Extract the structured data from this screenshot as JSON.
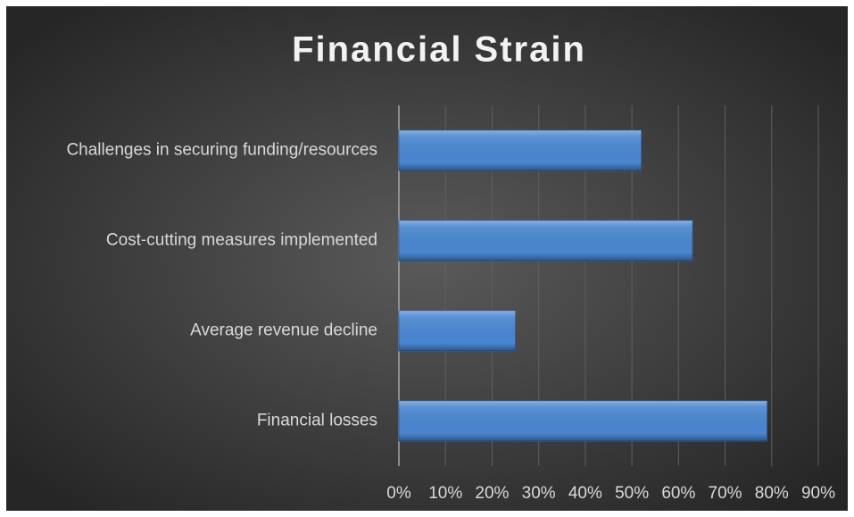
{
  "chart_data": {
    "type": "bar",
    "orientation": "horizontal",
    "title": "Financial Strain",
    "categories": [
      "Challenges in securing funding/resources",
      "Cost-cutting measures implemented",
      "Average revenue decline",
      "Financial losses"
    ],
    "values": [
      52,
      63,
      25,
      79
    ],
    "color": "#4a86d0",
    "xlim": [
      0,
      90
    ],
    "xticks": [
      {
        "value": 0,
        "label": "0%"
      },
      {
        "value": 10,
        "label": "10%"
      },
      {
        "value": 20,
        "label": "20%"
      },
      {
        "value": 30,
        "label": "30%"
      },
      {
        "value": 40,
        "label": "40%"
      },
      {
        "value": 50,
        "label": "50%"
      },
      {
        "value": 60,
        "label": "60%"
      },
      {
        "value": 70,
        "label": "70%"
      },
      {
        "value": 80,
        "label": "80%"
      },
      {
        "value": 90,
        "label": "90%"
      }
    ],
    "grid": true
  }
}
